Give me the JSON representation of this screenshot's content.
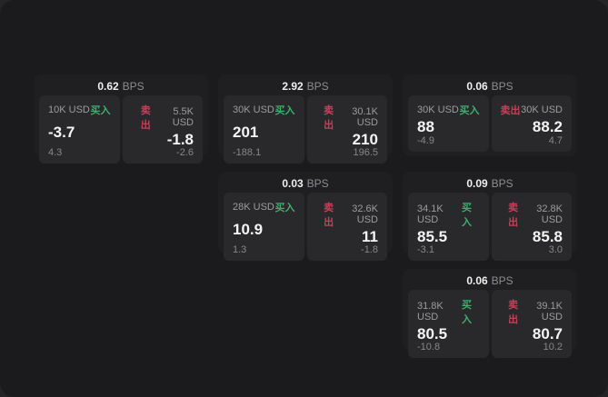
{
  "labels": {
    "buy": "买入",
    "sell": "卖出",
    "bps": "BPS"
  },
  "colors": {
    "buy_green": "#3fae6e",
    "sell_red": "#c4405a",
    "window_bg": "#1b1b1d",
    "card_bg": "#1f1f21",
    "panel_bg": "#29292b"
  },
  "cards": [
    {
      "bps": "0.62",
      "buy": {
        "size": "10K USD",
        "value": "-3.7",
        "change": "4.3"
      },
      "sell": {
        "size": "5.5K USD",
        "value": "-1.8",
        "change": "-2.6"
      }
    },
    {
      "bps": "2.92",
      "buy": {
        "size": "30K USD",
        "value": "201",
        "change": "-188.1"
      },
      "sell": {
        "size": "30.1K USD",
        "value": "210",
        "change": "196.5"
      }
    },
    {
      "bps": "0.06",
      "buy": {
        "size": "30K USD",
        "value": "88",
        "change": "-4.9"
      },
      "sell": {
        "size": "30K USD",
        "value": "88.2",
        "change": "4.7"
      }
    },
    {
      "bps": "0.03",
      "buy": {
        "size": "28K USD",
        "value": "10.9",
        "change": "1.3"
      },
      "sell": {
        "size": "32.6K USD",
        "value": "11",
        "change": "-1.8"
      }
    },
    {
      "bps": "0.09",
      "buy": {
        "size": "34.1K USD",
        "value": "85.5",
        "change": "-3.1"
      },
      "sell": {
        "size": "32.8K USD",
        "value": "85.8",
        "change": "3.0"
      }
    },
    {
      "bps": "0.06",
      "buy": {
        "size": "31.8K USD",
        "value": "80.5",
        "change": "-10.8"
      },
      "sell": {
        "size": "39.1K USD",
        "value": "80.7",
        "change": "10.2"
      }
    }
  ]
}
